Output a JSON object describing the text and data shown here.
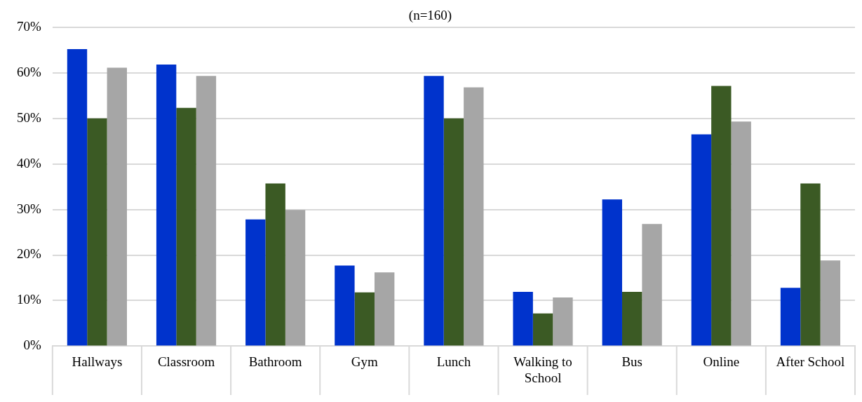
{
  "chart_data": {
    "type": "bar",
    "title": "(n=160)",
    "categories": [
      "Hallways",
      "Classroom",
      "Bathroom",
      "Gym",
      "Lunch",
      "Walking to School",
      "Bus",
      "Online",
      "After School"
    ],
    "series": [
      {
        "color": "#0033cc",
        "values": [
          65.2,
          61.8,
          27.8,
          17.7,
          59.3,
          11.9,
          32.2,
          46.5,
          12.8
        ]
      },
      {
        "color": "#3b5a24",
        "values": [
          50,
          52.3,
          35.7,
          11.8,
          50,
          7.2,
          11.9,
          57.1,
          35.7
        ]
      },
      {
        "color": "#a6a6a6",
        "values": [
          61.1,
          59.3,
          29.9,
          16.2,
          56.8,
          10.7,
          26.8,
          49.3,
          18.8
        ]
      }
    ],
    "ylim": [
      0,
      70
    ],
    "yticks": [
      {
        "value": 0,
        "label": "0%"
      },
      {
        "value": 10,
        "label": "10%"
      },
      {
        "value": 20,
        "label": "20%"
      },
      {
        "value": 30,
        "label": "30%"
      },
      {
        "value": 40,
        "label": "40%"
      },
      {
        "value": 50,
        "label": "50%"
      },
      {
        "value": 60,
        "label": "60%"
      },
      {
        "value": 70,
        "label": "70%"
      }
    ],
    "grid": "y",
    "legend": false
  }
}
